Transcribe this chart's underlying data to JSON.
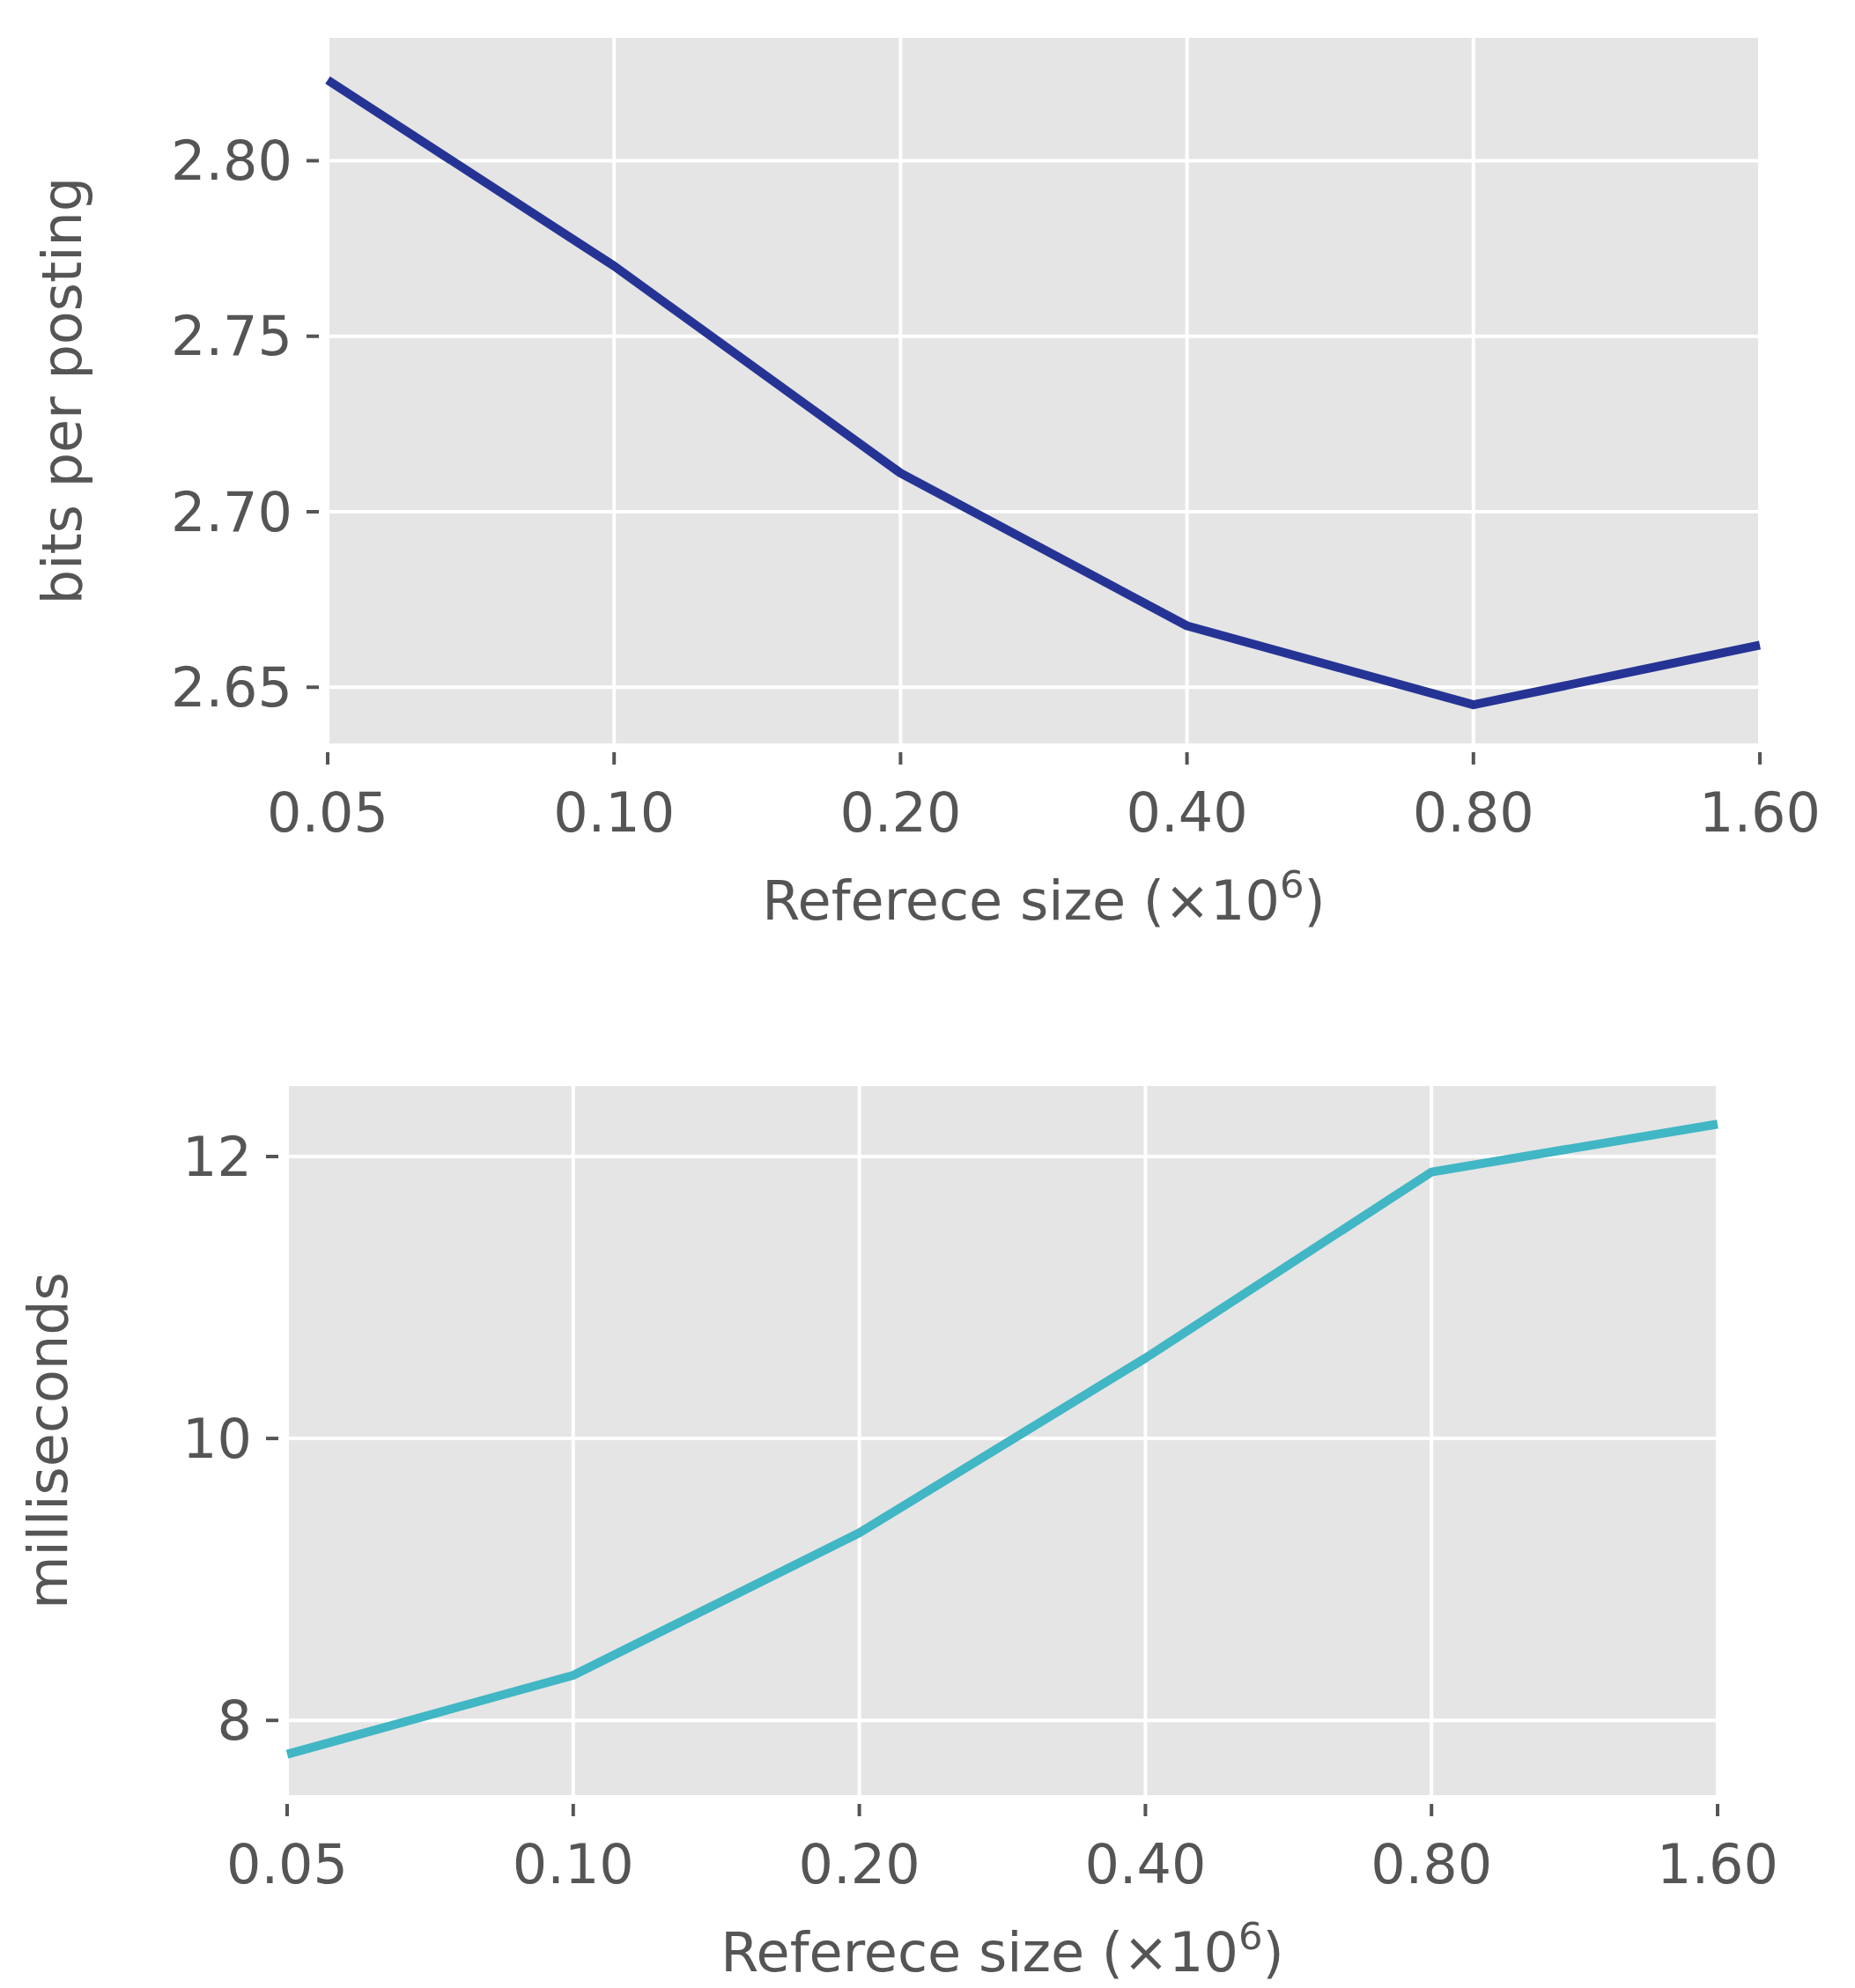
{
  "chart_data": [
    {
      "type": "line",
      "xlabel": "Referece size (×10$^{6}$)",
      "ylabel": "bits per posting",
      "categories": [
        "0.05",
        "0.10",
        "0.20",
        "0.40",
        "0.80",
        "1.60"
      ],
      "series": [
        {
          "color": "#253494",
          "values": [
            2.823,
            2.77,
            2.711,
            2.6675,
            2.645,
            2.662
          ]
        }
      ],
      "ylim": [
        2.634,
        2.835
      ],
      "yticks": [
        {
          "value": 2.65,
          "label": "2.65"
        },
        {
          "value": 2.7,
          "label": "2.70"
        },
        {
          "value": 2.75,
          "label": "2.75"
        },
        {
          "value": 2.8,
          "label": "2.80"
        }
      ],
      "grid": true
    },
    {
      "type": "line",
      "xlabel": "Referece size (×10$^{6}$)",
      "ylabel": "milliseconds",
      "categories": [
        "0.05",
        "0.10",
        "0.20",
        "0.40",
        "0.80",
        "1.60"
      ],
      "series": [
        {
          "color": "#41b6c4",
          "values": [
            7.76,
            8.32,
            9.33,
            10.57,
            11.89,
            12.23
          ]
        }
      ],
      "ylim": [
        7.47,
        12.5
      ],
      "yticks": [
        8,
        10,
        12
      ],
      "grid": true
    }
  ]
}
